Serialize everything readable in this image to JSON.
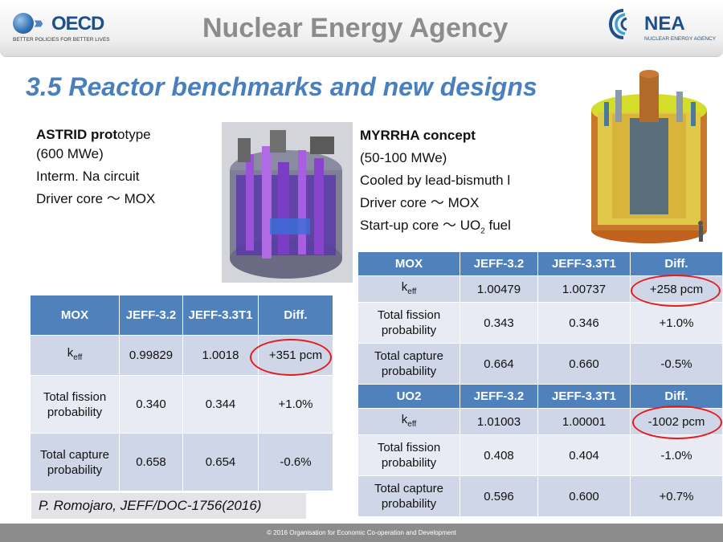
{
  "header": {
    "oecd_word": "OECD",
    "oecd_tagline": "BETTER POLICIES FOR BETTER LIVES",
    "agency_title": "Nuclear Energy Agency",
    "nea_word": "NEA",
    "nea_tagline": "NUCLEAR ENERGY AGENCY"
  },
  "slide_title": "3.5 Reactor benchmarks and new designs",
  "astrid": {
    "name_bold": "ASTRID prot",
    "name_rest": "otype",
    "power": "(600 MWe)",
    "circuit": "Interm. Na circuit",
    "driver_core": "Driver core ～ MOX"
  },
  "myrrha": {
    "name": "MYRRHA concept",
    "power": "(50-100 MWe)",
    "cooling": "Cooled by lead-bismuth l",
    "driver_core": "Driver core ～ MOX",
    "startup_pre": "Start-up core ～ UO",
    "startup_sub": "2",
    "startup_post": " fuel"
  },
  "table_left": {
    "headers": [
      "MOX",
      "JEFF-3.2",
      "JEFF-3.3T1",
      "Diff."
    ],
    "keff_base": "k",
    "keff_sub": "eff",
    "rows": [
      [
        "",
        "0.99829",
        "1.0018",
        "+351 pcm"
      ],
      [
        "Total fission probability",
        "0.340",
        "0.344",
        "+1.0%"
      ],
      [
        "Total capture probability",
        "0.658",
        "0.654",
        "-0.6%"
      ]
    ]
  },
  "table_right": {
    "mox_headers": [
      "MOX",
      "JEFF-3.2",
      "JEFF-3.3T1",
      "Diff."
    ],
    "keff_base": "k",
    "keff_sub": "eff",
    "mox_rows": [
      [
        "",
        "1.00479",
        "1.00737",
        "+258 pcm"
      ],
      [
        "Total fission probability",
        "0.343",
        "0.346",
        "+1.0%"
      ],
      [
        "Total capture probability",
        "0.664",
        "0.660",
        "-0.5%"
      ]
    ],
    "uo2_headers": [
      "UO2",
      "JEFF-3.2",
      "JEFF-3.3T1",
      "Diff."
    ],
    "uo2_rows": [
      [
        "",
        "1.01003",
        "1.00001",
        "-1002 pcm"
      ],
      [
        "Total fission probability",
        "0.408",
        "0.404",
        "-1.0%"
      ],
      [
        "Total capture probability",
        "0.596",
        "0.600",
        "+0.7%"
      ]
    ]
  },
  "citation": "P. Romojaro, JEFF/DOC-1756(2016)",
  "footer": "© 2016 Organisation for Economic Co-operation and Development",
  "colors": {
    "title_blue": "#4a7fbd",
    "table_header": "#4f81bd",
    "highlight_ring": "#e41b1b"
  }
}
